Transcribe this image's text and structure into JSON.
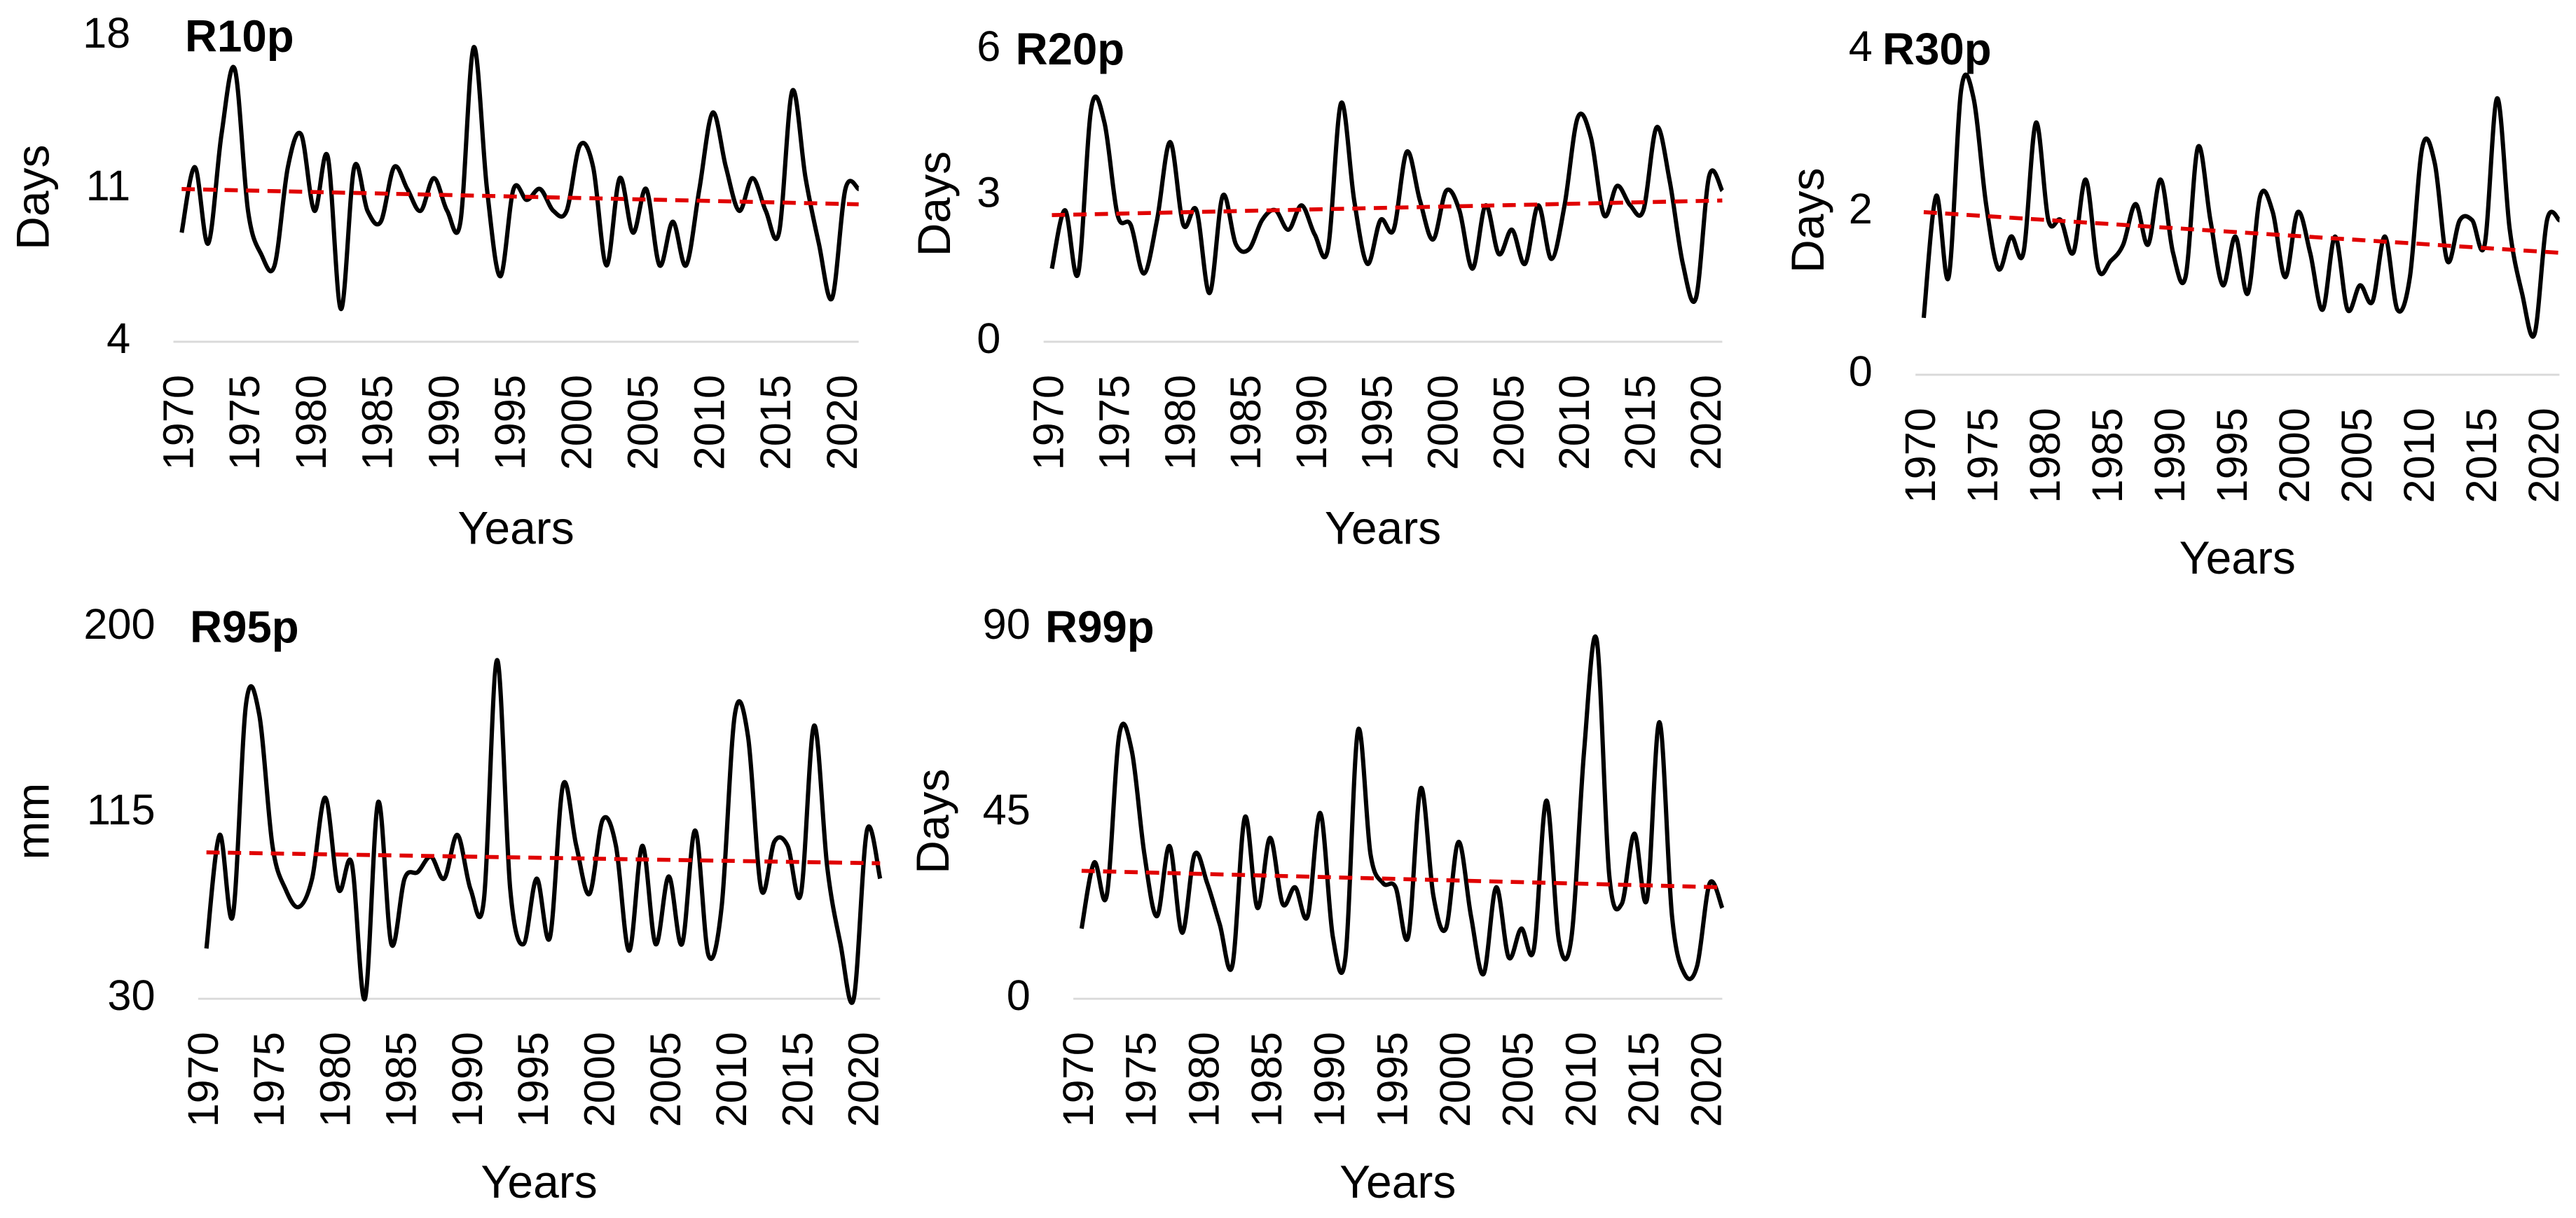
{
  "chart_data": [
    {
      "type": "line",
      "title": "R10p",
      "y_label": "Days",
      "x_label": "Years",
      "x": [
        1970,
        1971,
        1972,
        1973,
        1974,
        1975,
        1976,
        1977,
        1978,
        1979,
        1980,
        1981,
        1982,
        1983,
        1984,
        1985,
        1986,
        1987,
        1988,
        1989,
        1990,
        1991,
        1992,
        1993,
        1994,
        1995,
        1996,
        1997,
        1998,
        1999,
        2000,
        2001,
        2002,
        2003,
        2004,
        2005,
        2006,
        2007,
        2008,
        2009,
        2010,
        2011,
        2012,
        2013,
        2014,
        2015,
        2016,
        2017,
        2018,
        2019,
        2020,
        2021
      ],
      "series": [
        {
          "color": "#000000",
          "values": [
            9,
            12,
            8.5,
            13.5,
            16.5,
            10,
            8,
            7.5,
            12,
            13.5,
            10,
            12.5,
            5.5,
            12,
            10,
            9.5,
            12,
            11,
            10,
            11.5,
            10,
            9.5,
            17.5,
            11,
            7,
            11,
            10.5,
            11,
            10,
            10,
            13,
            12,
            7.5,
            11.5,
            9,
            11,
            7.5,
            9.5,
            7.5,
            11,
            14.5,
            12,
            10,
            11.5,
            10,
            9,
            15.5,
            11.5,
            8.5,
            6,
            11,
            11
          ]
        }
      ],
      "trend": {
        "color": "#e00000",
        "values": [
          11,
          10.3
        ]
      },
      "xlim": [
        1970,
        2021
      ],
      "xticks": [
        1970,
        1975,
        1980,
        1985,
        1990,
        1995,
        2000,
        2005,
        2010,
        2015,
        2020
      ],
      "ylim": [
        4,
        18
      ],
      "yticks": [
        4,
        11,
        18
      ]
    },
    {
      "type": "line",
      "title": "R20p",
      "y_label": "Days",
      "x_label": "Years",
      "x": [
        1970,
        1971,
        1972,
        1973,
        1974,
        1975,
        1976,
        1977,
        1978,
        1979,
        1980,
        1981,
        1982,
        1983,
        1984,
        1985,
        1986,
        1987,
        1988,
        1989,
        1990,
        1991,
        1992,
        1993,
        1994,
        1995,
        1996,
        1997,
        1998,
        1999,
        2000,
        2001,
        2002,
        2003,
        2004,
        2005,
        2006,
        2007,
        2008,
        2009,
        2010,
        2011,
        2012,
        2013,
        2014,
        2015,
        2016,
        2017,
        2018,
        2019,
        2020,
        2021
      ],
      "series": [
        {
          "color": "#000000",
          "values": [
            1.5,
            2.7,
            1.4,
            4.8,
            4.5,
            2.6,
            2.4,
            1.4,
            2.5,
            4.1,
            2.4,
            2.7,
            1.0,
            3.0,
            2.0,
            1.9,
            2.5,
            2.7,
            2.3,
            2.8,
            2.2,
            1.9,
            4.9,
            2.9,
            1.6,
            2.5,
            2.3,
            3.9,
            2.9,
            2.1,
            3.1,
            2.7,
            1.5,
            2.8,
            1.8,
            2.3,
            1.6,
            2.8,
            1.7,
            2.8,
            4.6,
            4.2,
            2.6,
            3.2,
            2.8,
            2.7,
            4.4,
            3.3,
            1.6,
            0.9,
            3.4,
            3.1
          ]
        }
      ],
      "trend": {
        "color": "#e00000",
        "values": [
          2.6,
          2.9
        ]
      },
      "xlim": [
        1970,
        2021
      ],
      "xticks": [
        1970,
        1975,
        1980,
        1985,
        1990,
        1995,
        2000,
        2005,
        2010,
        2015,
        2020
      ],
      "ylim": [
        0,
        6
      ],
      "yticks": [
        0,
        3,
        6
      ]
    },
    {
      "type": "line",
      "title": "R30p",
      "y_label": "Days",
      "x_label": "Years",
      "x": [
        1970,
        1971,
        1972,
        1973,
        1974,
        1975,
        1976,
        1977,
        1978,
        1979,
        1980,
        1981,
        1982,
        1983,
        1984,
        1985,
        1986,
        1987,
        1988,
        1989,
        1990,
        1991,
        1992,
        1993,
        1994,
        1995,
        1996,
        1997,
        1998,
        1999,
        2000,
        2001,
        2002,
        2003,
        2004,
        2005,
        2006,
        2007,
        2008,
        2009,
        2010,
        2011,
        2012,
        2013,
        2014,
        2015,
        2016,
        2017,
        2018,
        2019,
        2020,
        2021
      ],
      "series": [
        {
          "color": "#000000",
          "values": [
            0.7,
            2.2,
            1.2,
            3.5,
            3.4,
            2.1,
            1.3,
            1.7,
            1.5,
            3.1,
            1.9,
            1.9,
            1.5,
            2.4,
            1.3,
            1.4,
            1.6,
            2.1,
            1.6,
            2.4,
            1.5,
            1.2,
            2.8,
            1.9,
            1.1,
            1.7,
            1.0,
            2.2,
            2.0,
            1.2,
            2.0,
            1.5,
            0.8,
            1.7,
            0.8,
            1.1,
            0.9,
            1.7,
            0.8,
            1.2,
            2.8,
            2.6,
            1.4,
            1.9,
            1.9,
            1.6,
            3.4,
            1.8,
            1.0,
            0.5,
            1.9,
            1.9
          ]
        }
      ],
      "trend": {
        "color": "#e00000",
        "values": [
          2.0,
          1.5
        ]
      },
      "xlim": [
        1970,
        2021
      ],
      "xticks": [
        1970,
        1975,
        1980,
        1985,
        1990,
        1995,
        2000,
        2005,
        2010,
        2015,
        2020
      ],
      "ylim": [
        0,
        4
      ],
      "yticks": [
        0,
        2,
        4
      ]
    },
    {
      "type": "line",
      "title": "R95p",
      "y_label": "mm",
      "x_label": "Years",
      "x": [
        1970,
        1971,
        1972,
        1973,
        1974,
        1975,
        1976,
        1977,
        1978,
        1979,
        1980,
        1981,
        1982,
        1983,
        1984,
        1985,
        1986,
        1987,
        1988,
        1989,
        1990,
        1991,
        1992,
        1993,
        1994,
        1995,
        1996,
        1997,
        1998,
        1999,
        2000,
        2001,
        2002,
        2003,
        2004,
        2005,
        2006,
        2007,
        2008,
        2009,
        2010,
        2011,
        2012,
        2013,
        2014,
        2015,
        2016,
        2017,
        2018,
        2019,
        2020,
        2021
      ],
      "series": [
        {
          "color": "#000000",
          "values": [
            53,
            105,
            68,
            165,
            160,
            100,
            80,
            72,
            85,
            122,
            80,
            92,
            30,
            120,
            55,
            85,
            88,
            95,
            85,
            105,
            80,
            75,
            185,
            80,
            55,
            85,
            58,
            128,
            100,
            78,
            112,
            100,
            52,
            100,
            55,
            86,
            55,
            107,
            50,
            72,
            160,
            150,
            80,
            102,
            100,
            78,
            155,
            90,
            55,
            30,
            107,
            85
          ]
        }
      ],
      "trend": {
        "color": "#e00000",
        "values": [
          97,
          92
        ]
      },
      "xlim": [
        1970,
        2021
      ],
      "xticks": [
        1970,
        1975,
        1980,
        1985,
        1990,
        1995,
        2000,
        2005,
        2010,
        2015,
        2020
      ],
      "ylim": [
        30,
        200
      ],
      "yticks": [
        30,
        115,
        200
      ]
    },
    {
      "type": "line",
      "title": "R99p",
      "y_label": "Days",
      "x_label": "Years",
      "x": [
        1970,
        1971,
        1972,
        1973,
        1974,
        1975,
        1976,
        1977,
        1978,
        1979,
        1980,
        1981,
        1982,
        1983,
        1984,
        1985,
        1986,
        1987,
        1988,
        1989,
        1990,
        1991,
        1992,
        1993,
        1994,
        1995,
        1996,
        1997,
        1998,
        1999,
        2000,
        2001,
        2002,
        2003,
        2004,
        2005,
        2006,
        2007,
        2008,
        2009,
        2010,
        2011,
        2012,
        2013,
        2014,
        2015,
        2016,
        2017,
        2018,
        2019,
        2020,
        2021
      ],
      "series": [
        {
          "color": "#000000",
          "values": [
            17,
            33,
            25,
            64,
            60,
            35,
            20,
            37,
            16,
            35,
            28,
            18,
            8,
            44,
            22,
            39,
            23,
            27,
            20,
            45,
            15,
            10,
            65,
            35,
            28,
            27,
            15,
            51,
            25,
            17,
            38,
            20,
            6,
            27,
            10,
            17,
            12,
            48,
            14,
            15,
            60,
            87,
            30,
            23,
            40,
            24,
            67,
            20,
            6,
            8,
            28,
            22
          ]
        }
      ],
      "trend": {
        "color": "#e00000",
        "values": [
          31,
          27
        ]
      },
      "xlim": [
        1970,
        2021
      ],
      "xticks": [
        1970,
        1975,
        1980,
        1985,
        1990,
        1995,
        2000,
        2005,
        2010,
        2015,
        2020
      ],
      "ylim": [
        0,
        90
      ],
      "yticks": [
        0,
        45,
        90
      ]
    }
  ]
}
